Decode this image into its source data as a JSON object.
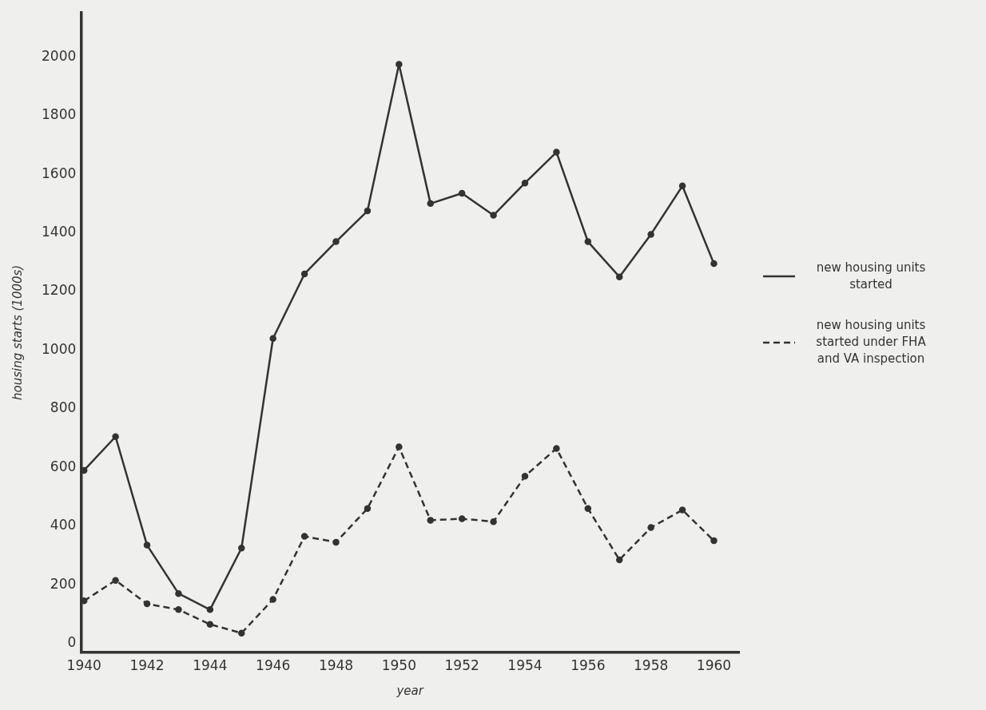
{
  "chart_data": {
    "type": "line",
    "xlabel": "year",
    "ylabel": "housing starts (1000s)",
    "xlim": [
      1939.9,
      1960.8
    ],
    "xticks": [
      1940,
      1942,
      1944,
      1946,
      1948,
      1950,
      1952,
      1954,
      1956,
      1958,
      1960
    ],
    "ylim": [
      -30,
      2150
    ],
    "yticks": [
      0,
      200,
      400,
      600,
      800,
      1000,
      1200,
      1400,
      1600,
      1800,
      2000
    ],
    "x": [
      1940,
      1941,
      1942,
      1943,
      1944,
      1945,
      1946,
      1947,
      1948,
      1949,
      1950,
      1951,
      1952,
      1953,
      1954,
      1955,
      1956,
      1957,
      1958,
      1959,
      1960
    ],
    "grid": false,
    "legend": "right",
    "marker": "circle",
    "series": [
      {
        "name": "new housing units started",
        "color": "#333333",
        "line_style": "solid",
        "values": [
          590,
          705,
          335,
          170,
          115,
          325,
          1040,
          1260,
          1370,
          1475,
          1975,
          1500,
          1535,
          1460,
          1570,
          1675,
          1370,
          1250,
          1395,
          1560,
          1295
        ]
      },
      {
        "name": "new housing units started under FHA and VA inspection",
        "color": "#333333",
        "line_style": "dashed",
        "values": [
          145,
          215,
          135,
          115,
          65,
          35,
          150,
          365,
          345,
          460,
          670,
          420,
          425,
          415,
          570,
          665,
          460,
          285,
          395,
          455,
          350
        ]
      }
    ]
  }
}
